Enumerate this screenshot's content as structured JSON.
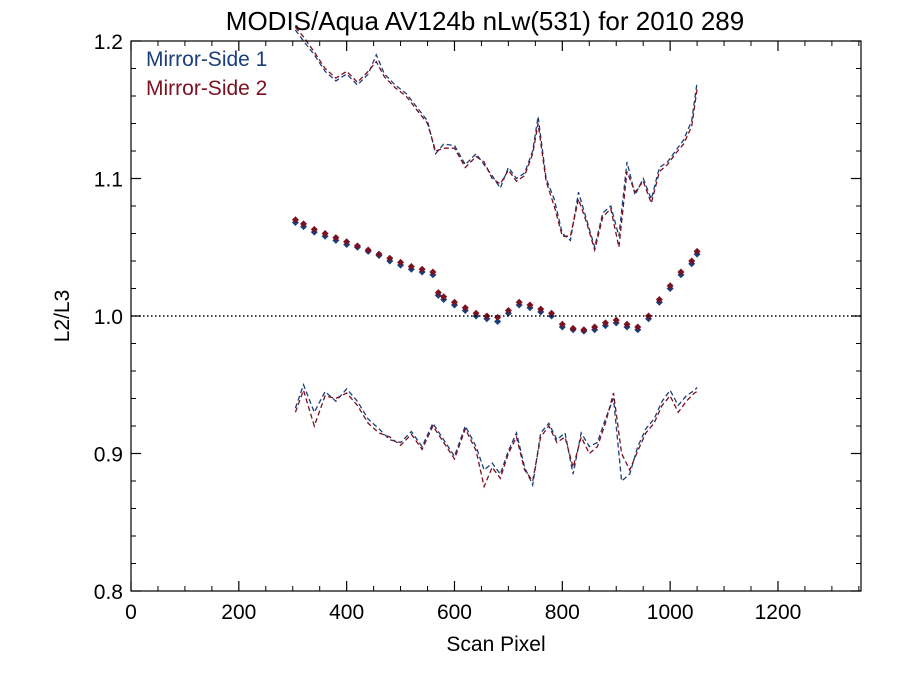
{
  "chart_data": {
    "type": "scatter",
    "title": "MODIS/Aqua AV124b nLw(531) for 2010 289",
    "xlabel": "Scan Pixel",
    "ylabel": "L2/L3",
    "xlim": [
      0,
      1354
    ],
    "ylim": [
      0.8,
      1.2
    ],
    "xticks": [
      {
        "value": 0,
        "label": "0"
      },
      {
        "value": 200,
        "label": "200"
      },
      {
        "value": 400,
        "label": "400"
      },
      {
        "value": 600,
        "label": "600"
      },
      {
        "value": 800,
        "label": "800"
      },
      {
        "value": 1000,
        "label": "1000"
      },
      {
        "value": 1200,
        "label": "1200"
      }
    ],
    "yticks": [
      {
        "value": 0.8,
        "label": "0.8"
      },
      {
        "value": 0.9,
        "label": "0.9"
      },
      {
        "value": 1.0,
        "label": "1.0"
      },
      {
        "value": 1.1,
        "label": "1.1"
      },
      {
        "value": 1.2,
        "label": "1.2"
      }
    ],
    "reference_line": 1.0,
    "grid": false,
    "legend_position": "top-left",
    "colors": {
      "ms1": "#1a3f7a",
      "ms2": "#7a1020"
    },
    "series": [
      {
        "name": "Mirror-Side 1",
        "color": "#1a3f7a",
        "median": {
          "x": [
            305,
            320,
            340,
            360,
            380,
            400,
            420,
            440,
            460,
            480,
            500,
            520,
            540,
            560,
            570,
            580,
            600,
            620,
            640,
            660,
            680,
            700,
            720,
            740,
            760,
            780,
            800,
            820,
            840,
            860,
            880,
            900,
            920,
            940,
            960,
            980,
            1000,
            1020,
            1040,
            1050
          ],
          "y": [
            1.068,
            1.065,
            1.061,
            1.058,
            1.055,
            1.052,
            1.05,
            1.047,
            1.044,
            1.04,
            1.037,
            1.034,
            1.032,
            1.03,
            1.015,
            1.012,
            1.008,
            1.004,
            1.0,
            0.998,
            0.996,
            1.002,
            1.008,
            1.006,
            1.003,
            1.0,
            0.992,
            0.99,
            0.989,
            0.99,
            0.993,
            0.995,
            0.992,
            0.99,
            0.998,
            1.01,
            1.02,
            1.03,
            1.038,
            1.045
          ]
        },
        "upper": {
          "x": [
            305,
            320,
            340,
            360,
            380,
            400,
            420,
            440,
            455,
            470,
            490,
            510,
            530,
            550,
            565,
            580,
            600,
            620,
            640,
            655,
            670,
            685,
            700,
            715,
            730,
            745,
            755,
            770,
            785,
            800,
            815,
            830,
            845,
            860,
            875,
            890,
            905,
            920,
            935,
            950,
            965,
            980,
            995,
            1010,
            1025,
            1040,
            1050
          ],
          "y": [
            1.208,
            1.2,
            1.19,
            1.178,
            1.171,
            1.176,
            1.168,
            1.176,
            1.19,
            1.176,
            1.168,
            1.162,
            1.152,
            1.142,
            1.118,
            1.125,
            1.124,
            1.11,
            1.118,
            1.11,
            1.102,
            1.093,
            1.108,
            1.1,
            1.104,
            1.12,
            1.145,
            1.1,
            1.085,
            1.06,
            1.055,
            1.09,
            1.07,
            1.05,
            1.075,
            1.08,
            1.058,
            1.112,
            1.088,
            1.1,
            1.085,
            1.108,
            1.112,
            1.12,
            1.128,
            1.142,
            1.17
          ]
        },
        "lower": {
          "x": [
            305,
            320,
            340,
            360,
            380,
            400,
            420,
            440,
            460,
            480,
            500,
            520,
            540,
            560,
            580,
            600,
            620,
            640,
            655,
            670,
            685,
            700,
            715,
            730,
            745,
            760,
            775,
            790,
            805,
            820,
            835,
            850,
            865,
            880,
            895,
            910,
            925,
            940,
            955,
            970,
            985,
            1000,
            1015,
            1030,
            1045,
            1050
          ],
          "y": [
            0.933,
            0.95,
            0.93,
            0.945,
            0.938,
            0.947,
            0.938,
            0.925,
            0.918,
            0.91,
            0.908,
            0.916,
            0.905,
            0.922,
            0.91,
            0.898,
            0.92,
            0.905,
            0.888,
            0.893,
            0.885,
            0.902,
            0.915,
            0.89,
            0.877,
            0.915,
            0.922,
            0.91,
            0.915,
            0.885,
            0.915,
            0.905,
            0.908,
            0.925,
            0.94,
            0.88,
            0.885,
            0.905,
            0.918,
            0.925,
            0.938,
            0.946,
            0.935,
            0.942,
            0.946,
            0.948
          ]
        }
      },
      {
        "name": "Mirror-Side 2",
        "color": "#7a1020",
        "median": {
          "x": [
            305,
            320,
            340,
            360,
            380,
            400,
            420,
            440,
            460,
            480,
            500,
            520,
            540,
            560,
            570,
            580,
            600,
            620,
            640,
            660,
            680,
            700,
            720,
            740,
            760,
            780,
            800,
            820,
            840,
            860,
            880,
            900,
            920,
            940,
            960,
            980,
            1000,
            1020,
            1040,
            1050
          ],
          "y": [
            1.07,
            1.067,
            1.063,
            1.06,
            1.057,
            1.054,
            1.051,
            1.048,
            1.045,
            1.042,
            1.039,
            1.036,
            1.034,
            1.032,
            1.017,
            1.014,
            1.01,
            1.006,
            1.002,
            1.0,
            0.999,
            1.004,
            1.01,
            1.008,
            1.005,
            1.002,
            0.994,
            0.991,
            0.99,
            0.992,
            0.995,
            0.997,
            0.994,
            0.992,
            1.0,
            1.012,
            1.022,
            1.032,
            1.04,
            1.047
          ]
        },
        "upper": {
          "x": [
            305,
            320,
            340,
            360,
            380,
            400,
            420,
            440,
            455,
            470,
            490,
            510,
            530,
            550,
            565,
            580,
            600,
            620,
            640,
            655,
            670,
            685,
            700,
            715,
            730,
            745,
            755,
            770,
            785,
            800,
            815,
            830,
            845,
            860,
            875,
            890,
            905,
            920,
            935,
            950,
            965,
            980,
            995,
            1010,
            1025,
            1040,
            1050
          ],
          "y": [
            1.21,
            1.203,
            1.192,
            1.18,
            1.173,
            1.178,
            1.17,
            1.178,
            1.185,
            1.174,
            1.166,
            1.16,
            1.15,
            1.14,
            1.12,
            1.122,
            1.122,
            1.108,
            1.116,
            1.112,
            1.1,
            1.096,
            1.106,
            1.098,
            1.102,
            1.118,
            1.14,
            1.098,
            1.08,
            1.058,
            1.058,
            1.085,
            1.068,
            1.048,
            1.072,
            1.078,
            1.05,
            1.105,
            1.09,
            1.098,
            1.082,
            1.105,
            1.11,
            1.118,
            1.125,
            1.138,
            1.165
          ]
        },
        "lower": {
          "x": [
            305,
            320,
            340,
            360,
            380,
            400,
            420,
            440,
            460,
            480,
            500,
            520,
            540,
            560,
            580,
            600,
            620,
            640,
            655,
            670,
            685,
            700,
            715,
            730,
            745,
            760,
            775,
            790,
            805,
            820,
            835,
            850,
            865,
            880,
            895,
            910,
            925,
            940,
            955,
            970,
            985,
            1000,
            1015,
            1030,
            1045,
            1050
          ],
          "y": [
            0.93,
            0.946,
            0.92,
            0.942,
            0.94,
            0.944,
            0.935,
            0.922,
            0.915,
            0.912,
            0.906,
            0.914,
            0.903,
            0.92,
            0.908,
            0.896,
            0.918,
            0.902,
            0.876,
            0.89,
            0.882,
            0.9,
            0.912,
            0.888,
            0.88,
            0.912,
            0.92,
            0.908,
            0.912,
            0.89,
            0.912,
            0.9,
            0.905,
            0.922,
            0.944,
            0.9,
            0.888,
            0.902,
            0.915,
            0.922,
            0.935,
            0.942,
            0.93,
            0.938,
            0.944,
            0.945
          ]
        }
      }
    ]
  }
}
